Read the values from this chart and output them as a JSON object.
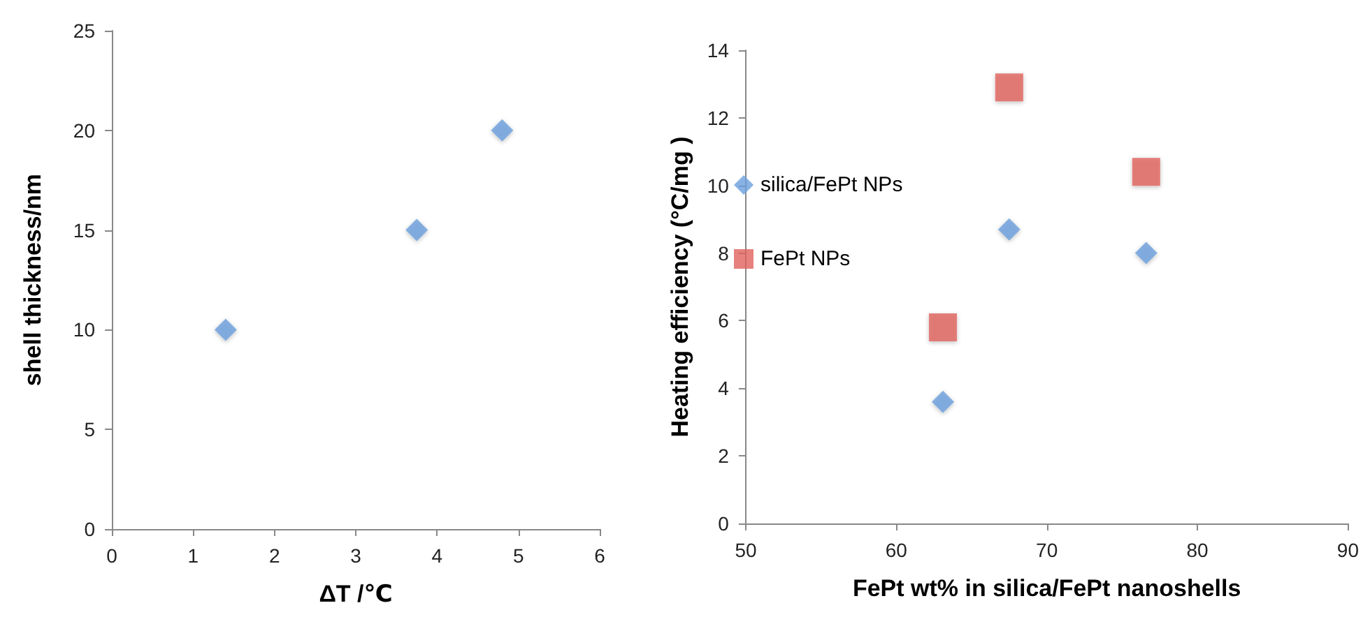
{
  "chart_data": [
    {
      "type": "scatter",
      "xlabel": "ΔT /℃",
      "ylabel": "shell thickness/nm",
      "xlim": [
        0,
        6
      ],
      "xticks": [
        0,
        1,
        2,
        3,
        4,
        5,
        6
      ],
      "ylim": [
        0,
        25
      ],
      "yticks": [
        0,
        5,
        10,
        15,
        20,
        25
      ],
      "grid": false,
      "legend": false,
      "marker": "diamond",
      "series": [
        {
          "color": "#6a9fdc",
          "x": [
            1.4,
            3.75,
            4.8
          ],
          "values": [
            10,
            15,
            20
          ]
        }
      ]
    },
    {
      "type": "scatter",
      "xlabel": "FePt wt% in silica/FePt nanoshells",
      "ylabel": "Heating efficiency (°C/mg )",
      "xlim": [
        50,
        90
      ],
      "xticks": [
        50,
        60,
        70,
        80,
        90
      ],
      "ylim": [
        0,
        14
      ],
      "yticks": [
        0,
        2,
        4,
        6,
        8,
        10,
        12,
        14
      ],
      "grid": false,
      "legend": "left",
      "series": [
        {
          "name": "silica/FePt NPs",
          "color": "#6a9fdc",
          "marker": "diamond",
          "x": [
            63.1,
            67.5,
            76.6
          ],
          "values": [
            3.6,
            8.7,
            8.0
          ]
        },
        {
          "name": "FePt NPs",
          "color": "#e0625c",
          "marker": "square",
          "x": [
            63.1,
            67.5,
            76.6
          ],
          "values": [
            5.8,
            12.9,
            10.4
          ]
        }
      ]
    }
  ]
}
